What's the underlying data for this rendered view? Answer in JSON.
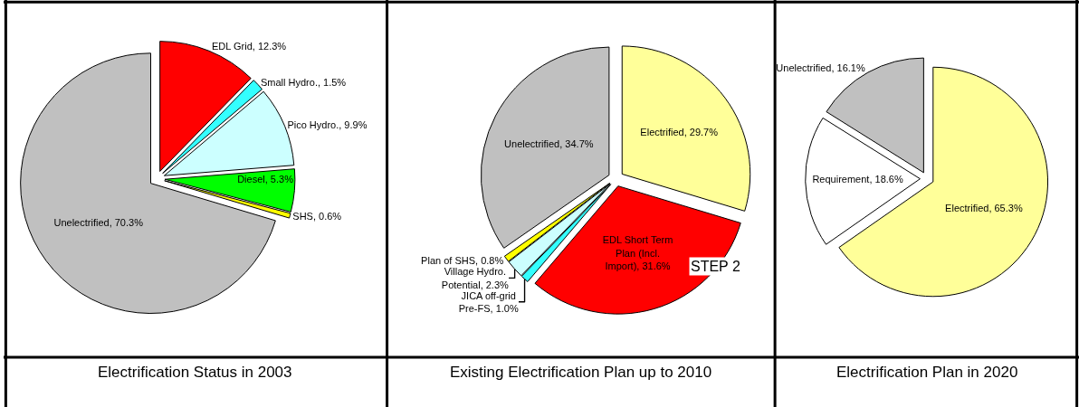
{
  "chart_data": [
    {
      "type": "pie",
      "title": "Electrification Status in 2003",
      "categories": [
        "EDL Grid",
        "Small Hydro.",
        "Pico Hydro.",
        "Diesel",
        "SHS",
        "Unelectrified"
      ],
      "values": [
        12.3,
        1.5,
        9.9,
        5.3,
        0.6,
        70.3
      ],
      "value_labels": [
        "12.3%",
        "1.5%",
        "9.9%",
        "5.3%",
        "0.6%",
        "70.3%"
      ],
      "colors": [
        "#ff0000",
        "#33ffff",
        "#ccffff",
        "#00ff00",
        "#ffff00",
        "#c0c0c0"
      ]
    },
    {
      "type": "pie",
      "title": "Existing Electrification Plan up to 2010",
      "categories": [
        "Electrified",
        "EDL Short Term Plan (Incl. Import)",
        "JICA off-grid Pre-FS",
        "Village Hydro. Potential",
        "Plan of SHS",
        "Unelectrified"
      ],
      "values": [
        29.7,
        31.6,
        1.0,
        2.3,
        0.8,
        34.7
      ],
      "value_labels": [
        "29.7%",
        "31.6%",
        "1.0%",
        "2.3%",
        "0.8%",
        "34.7%"
      ],
      "colors": [
        "#ffff99",
        "#ff0000",
        "#33ffff",
        "#ccffff",
        "#ffff00",
        "#c0c0c0"
      ]
    },
    {
      "type": "pie",
      "title": "Electrification Plan in 2020",
      "categories": [
        "Electrified",
        "Requirement",
        "Unelectrified"
      ],
      "values": [
        65.3,
        18.6,
        16.1
      ],
      "value_labels": [
        "65.3%",
        "18.6%",
        "16.1%"
      ],
      "colors": [
        "#ffff99",
        "#ffffff",
        "#c0c0c0"
      ],
      "annotations": [
        "STEP 2"
      ]
    }
  ]
}
